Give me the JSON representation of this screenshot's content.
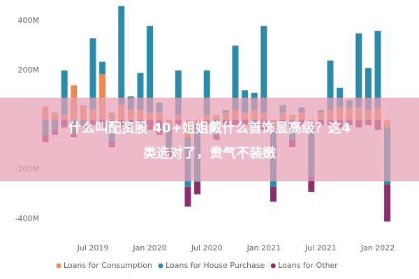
{
  "chart_data": {
    "type": "stacked-bar",
    "categories": [
      null,
      null,
      null,
      null,
      null,
      "Jul 2019",
      null,
      null,
      null,
      null,
      null,
      "Jan 2020",
      null,
      null,
      null,
      null,
      null,
      "Jul 2020",
      null,
      null,
      null,
      null,
      null,
      "Jan 2021",
      null,
      null,
      null,
      null,
      null,
      "Jul 2021",
      null,
      null,
      null,
      null,
      null,
      "Jan 2022",
      null
    ],
    "series": [
      {
        "name": "Loans for Consumption",
        "color": "#ee8a50",
        "values": [
          55,
          30,
          20,
          140,
          60,
          40,
          185,
          30,
          60,
          40,
          40,
          30,
          30,
          -20,
          20,
          -70,
          -20,
          20,
          20,
          30,
          40,
          30,
          40,
          30,
          -40,
          30,
          20,
          30,
          -30,
          30,
          40,
          50,
          50,
          50,
          40,
          50,
          -30
        ]
      },
      {
        "name": "Loans for House Purchase",
        "color": "#2a8bab",
        "values": [
          -60,
          -40,
          180,
          -50,
          -20,
          290,
          50,
          -90,
          400,
          55,
          150,
          350,
          40,
          -100,
          180,
          -200,
          -230,
          180,
          -60,
          10,
          260,
          90,
          70,
          350,
          -230,
          30,
          -80,
          20,
          -200,
          10,
          200,
          80,
          30,
          300,
          170,
          310,
          -230
        ]
      },
      {
        "name": "Loans for Other",
        "color": "#8b2d6c",
        "values": [
          -30,
          -20,
          -30,
          -20,
          -10,
          -20,
          -30,
          -20,
          -30,
          -30,
          -20,
          -40,
          -60,
          -30,
          -20,
          -80,
          -50,
          -20,
          -20,
          -20,
          -20,
          -20,
          -20,
          -40,
          -60,
          -20,
          -30,
          -20,
          -60,
          -20,
          -20,
          -30,
          -20,
          -30,
          -20,
          -40,
          -150
        ]
      }
    ],
    "ylim": [
      -450,
      470
    ],
    "yticks": [
      {
        "value": 400,
        "label": "400M"
      },
      {
        "value": 200,
        "label": "200M"
      },
      {
        "value": -200,
        "label": "-200M"
      },
      {
        "value": -400,
        "label": "-400M"
      }
    ],
    "annotations": [
      "什么叫配资股 40+姐姐戴什么首饰显高级？这4",
      "类选对了，贵气不装嫩"
    ]
  }
}
